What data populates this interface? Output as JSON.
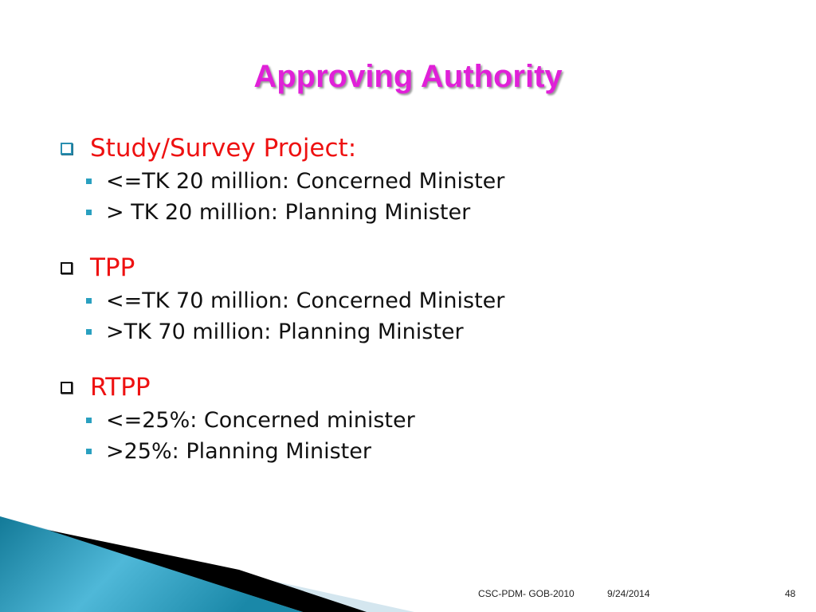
{
  "title": "Approving Authority",
  "sections": [
    {
      "heading": "Study/Survey Project:",
      "items": [
        "<=TK 20 million: Concerned Minister",
        "> TK 20 million: Planning Minister"
      ]
    },
    {
      "heading": "TPP",
      "items": [
        "<=TK 70 million: Concerned Minister",
        ">TK 70 million: Planning Minister"
      ]
    },
    {
      "heading": "RTPP",
      "items": [
        "<=25%: Concerned minister",
        ">25%: Planning Minister"
      ]
    }
  ],
  "footer": {
    "source": "CSC-PDM- GOB-2010",
    "date": "9/24/2014",
    "page": "48"
  },
  "colors": {
    "title": "#e020d8",
    "heading": "#ee1111",
    "bullet": "#2aa0c0",
    "swoosh": "#1a8aa8"
  }
}
